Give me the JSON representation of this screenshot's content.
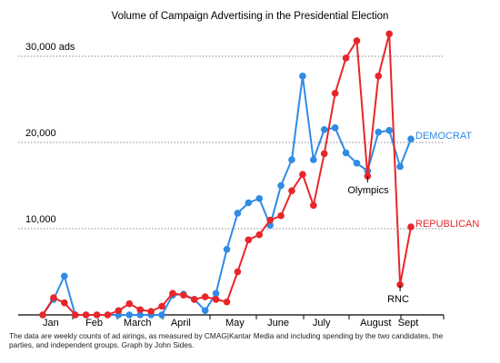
{
  "chart_data": {
    "type": "line",
    "title": "Volume of Campaign Advertising in the Presidential Election",
    "categories": [
      null,
      "Jan",
      null,
      null,
      null,
      "Feb",
      null,
      null,
      null,
      "March",
      null,
      null,
      null,
      "April",
      null,
      null,
      null,
      null,
      "May",
      null,
      null,
      null,
      "June",
      null,
      null,
      null,
      "July",
      null,
      null,
      null,
      null,
      "August",
      null,
      null,
      "Sept"
    ],
    "series": [
      {
        "name": "DEMOCRAT",
        "color": "#2f8be6",
        "values": [
          0,
          1800,
          4500,
          0,
          0,
          0,
          0,
          0,
          0,
          0,
          0,
          0,
          2300,
          2400,
          1800,
          500,
          2500,
          7600,
          11800,
          13000,
          13500,
          10400,
          15000,
          18000,
          27700,
          18000,
          21500,
          21700,
          18800,
          17600,
          16700,
          21200,
          21400,
          17200,
          20400
        ]
      },
      {
        "name": "REPUBLICAN",
        "color": "#e8262a",
        "values": [
          0,
          2000,
          1400,
          0,
          0,
          0,
          0,
          500,
          1300,
          600,
          400,
          1000,
          2500,
          2300,
          1800,
          2100,
          1800,
          1500,
          5000,
          8700,
          9300,
          11000,
          11500,
          14400,
          16300,
          12700,
          18700,
          25700,
          29800,
          31800,
          16100,
          27700,
          32600,
          3500,
          10200
        ]
      }
    ],
    "ylim": [
      0,
      33000
    ],
    "yticks": [
      {
        "value": 10000,
        "label": "10,000"
      },
      {
        "value": 20000,
        "label": "20,000"
      },
      {
        "value": 30000,
        "label": "30,000 ads"
      }
    ],
    "grid": true,
    "annotations": [
      "Olympics",
      "RNC"
    ],
    "note": "The data are weekly counts of ad airings, as measured by CMAG|Kantar Media and including spending by the two candidates, the parties, and independent groups. Graph by John Sides."
  }
}
